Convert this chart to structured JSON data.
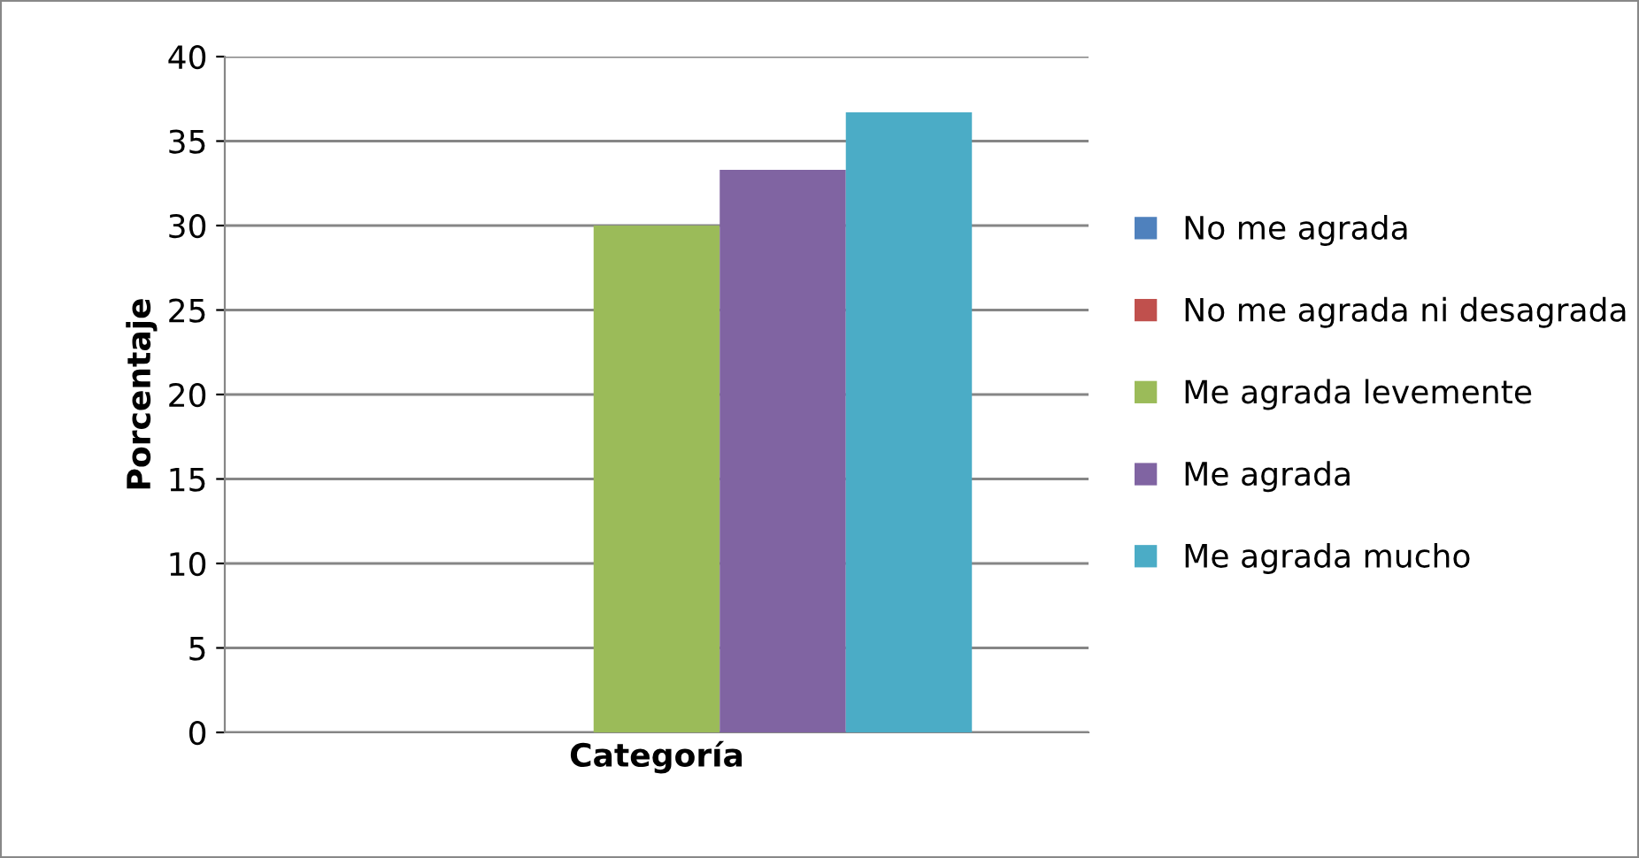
{
  "chart_data": {
    "type": "bar",
    "ylabel": "Porcentaje",
    "categories": [
      "Categoría"
    ],
    "series": [
      {
        "name": "No me agrada",
        "color": "#4f81bd",
        "values": [
          0
        ]
      },
      {
        "name": "No me agrada ni desagrada",
        "color": "#c0504d",
        "values": [
          0
        ]
      },
      {
        "name": "Me agrada levemente",
        "color": "#9bbb59",
        "values": [
          30
        ]
      },
      {
        "name": "Me agrada",
        "color": "#8064a2",
        "values": [
          33.3
        ]
      },
      {
        "name": "Me agrada mucho",
        "color": "#4bacc6",
        "values": [
          36.7
        ]
      }
    ],
    "ylim": [
      0,
      40
    ],
    "yticks": [
      0,
      5,
      10,
      15,
      20,
      25,
      30,
      35,
      40
    ],
    "grid": "y",
    "legend": "right"
  }
}
